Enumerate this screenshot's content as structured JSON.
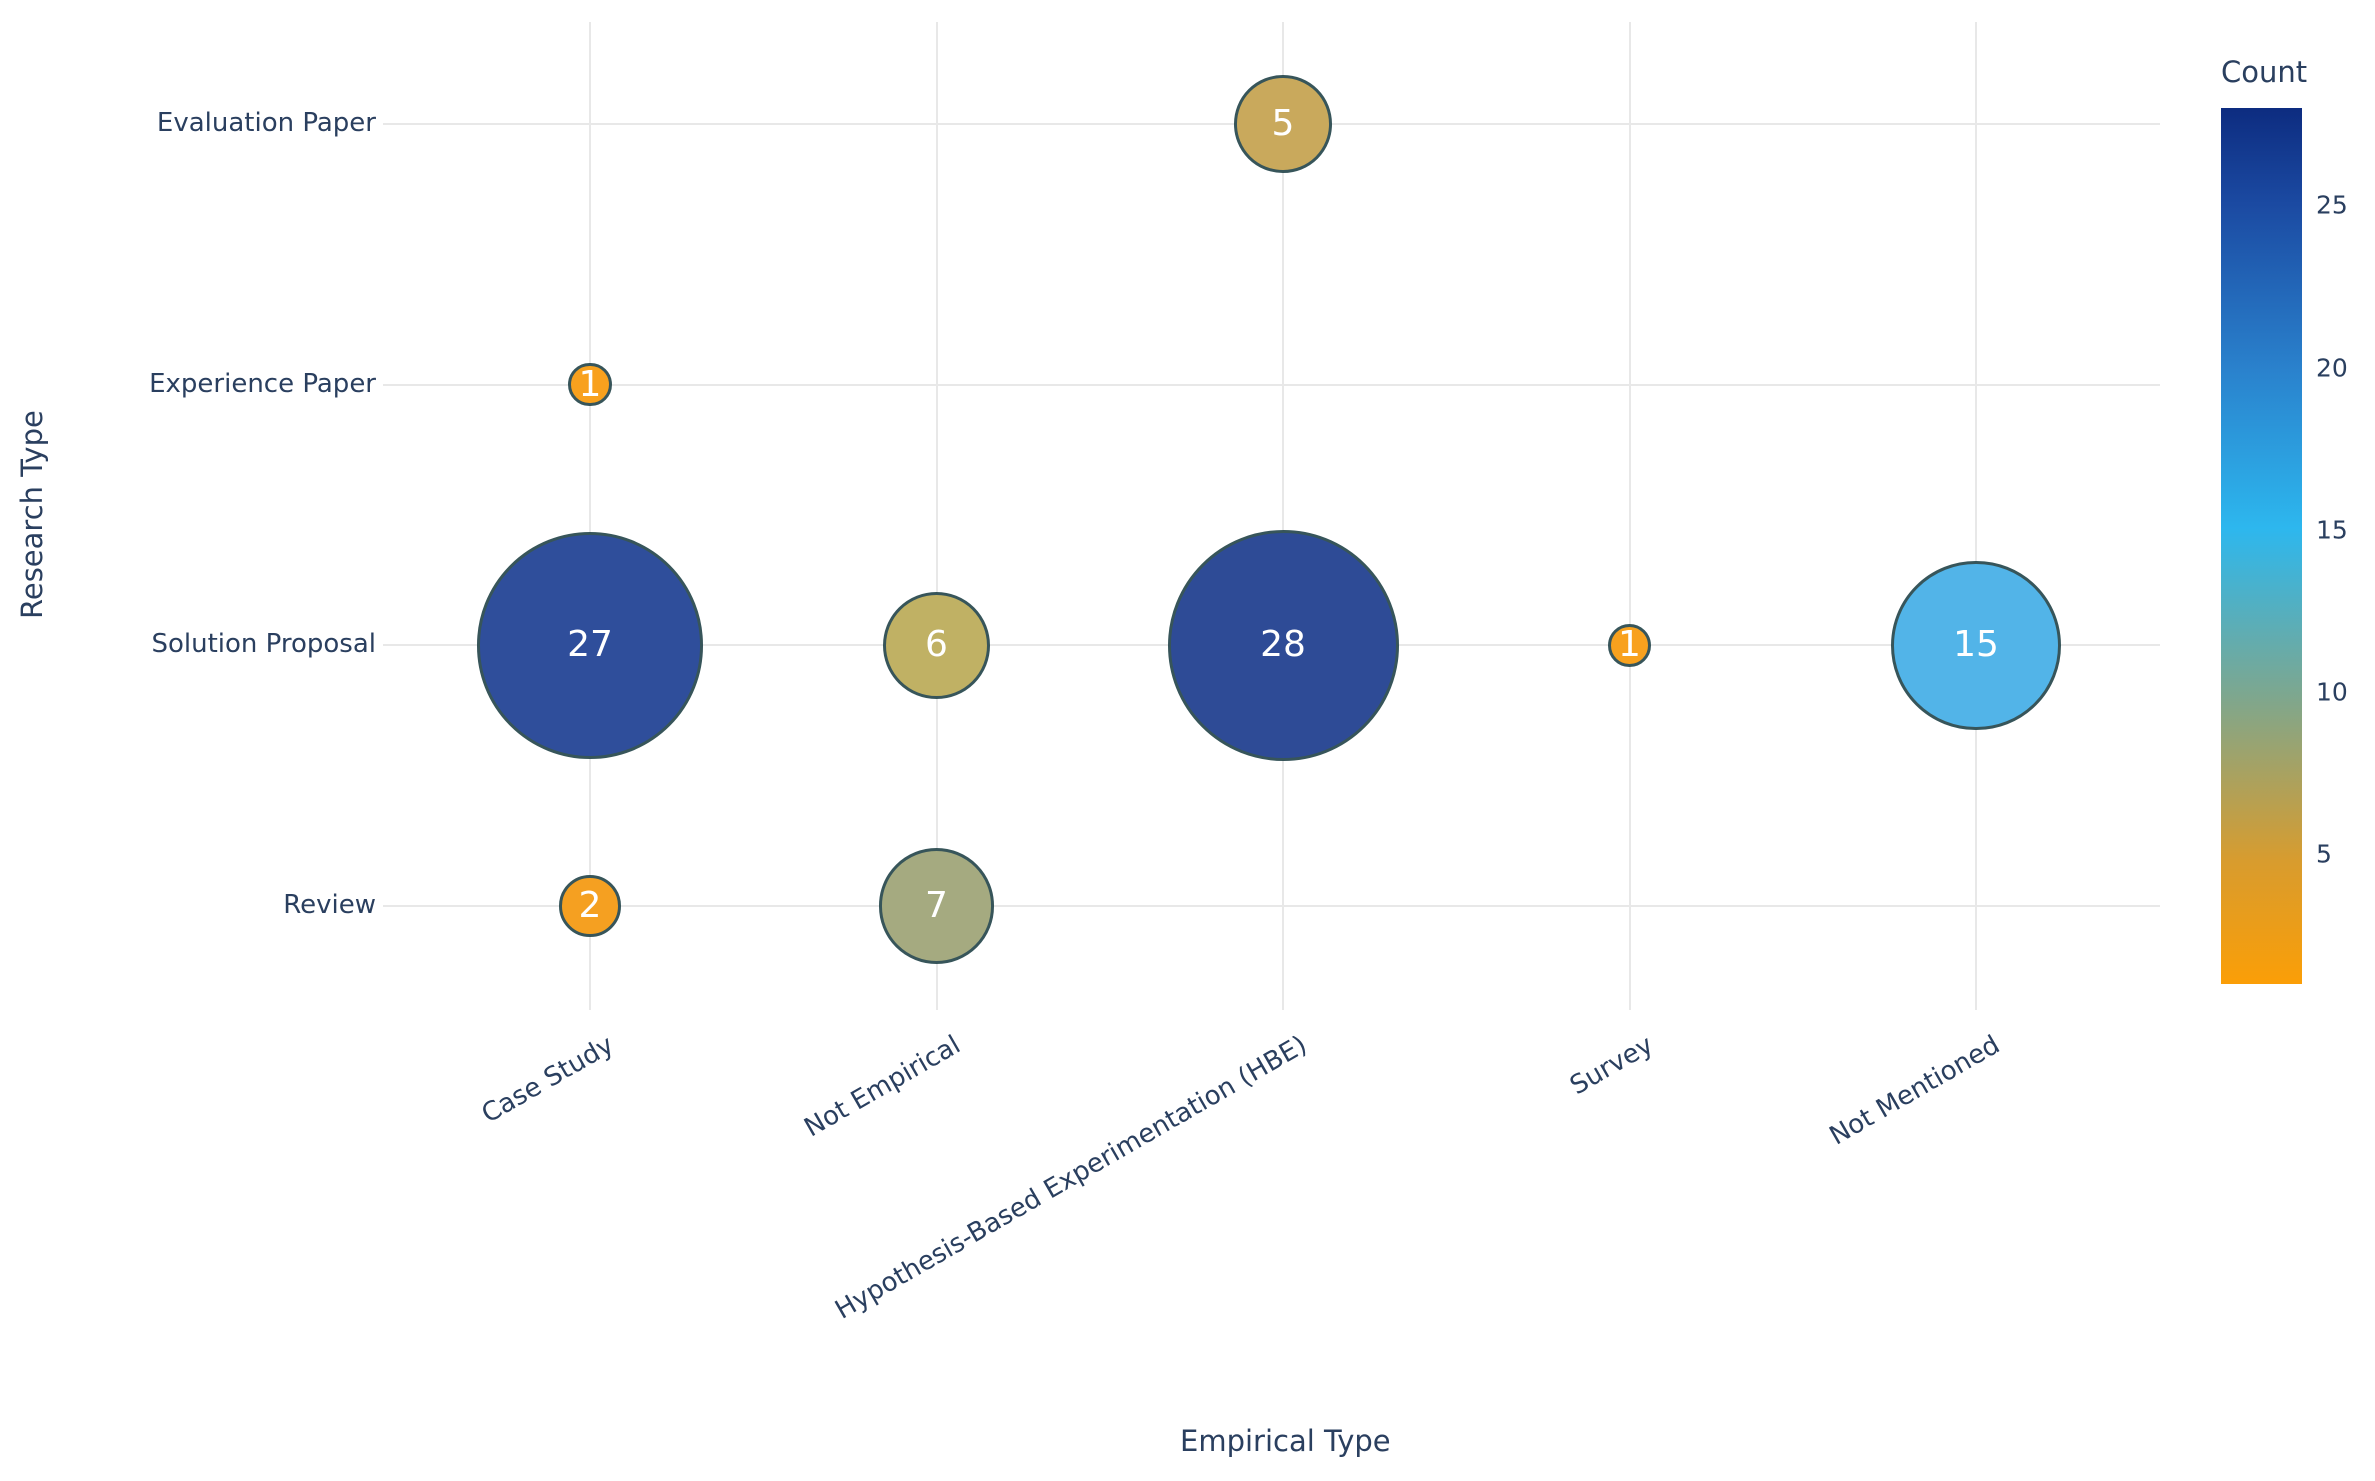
{
  "chart_data": {
    "type": "scatter",
    "subtype": "bubble",
    "title": "",
    "xlabel": "Empirical Type",
    "ylabel": "Research Type",
    "x_categories": [
      "Case Study",
      "Not Empirical",
      "Hypothesis-Based Experimentation (HBE)",
      "Survey",
      "Not Mentioned"
    ],
    "y_categories": [
      "Evaluation Paper",
      "Experience Paper",
      "Solution Proposal",
      "Review"
    ],
    "points": [
      {
        "x": "Hypothesis-Based Experimentation (HBE)",
        "y": "Evaluation Paper",
        "count": 5,
        "color": "#c9a95c"
      },
      {
        "x": "Case Study",
        "y": "Experience Paper",
        "count": 1,
        "color": "#f8a11e"
      },
      {
        "x": "Case Study",
        "y": "Solution Proposal",
        "count": 27,
        "color": "#2f4e9b"
      },
      {
        "x": "Not Empirical",
        "y": "Solution Proposal",
        "count": 6,
        "color": "#c0b164"
      },
      {
        "x": "Hypothesis-Based Experimentation (HBE)",
        "y": "Solution Proposal",
        "count": 28,
        "color": "#2e4b96"
      },
      {
        "x": "Survey",
        "y": "Solution Proposal",
        "count": 1,
        "color": "#f8a11e"
      },
      {
        "x": "Not Mentioned",
        "y": "Solution Proposal",
        "count": 15,
        "color": "#52b4e8"
      },
      {
        "x": "Case Study",
        "y": "Review",
        "count": 2,
        "color": "#f5a021"
      },
      {
        "x": "Not Empirical",
        "y": "Review",
        "count": 7,
        "color": "#a5aa80"
      }
    ],
    "size_min_count": 1,
    "size_max_count": 28,
    "grid": true,
    "legend_position": "right",
    "colorbar": {
      "title": "Count",
      "min": 1,
      "max": 28,
      "ticks": [
        5,
        10,
        15,
        20,
        25
      ],
      "gradient_top_to_bottom": [
        {
          "pos": 0,
          "color": "#0d2c80"
        },
        {
          "pos": 0.11,
          "color": "#1b4aa2"
        },
        {
          "pos": 0.3,
          "color": "#2a82cd"
        },
        {
          "pos": 0.48,
          "color": "#2db7ee"
        },
        {
          "pos": 0.67,
          "color": "#7da78f"
        },
        {
          "pos": 0.86,
          "color": "#d89c2e"
        },
        {
          "pos": 1,
          "color": "#fb9e07"
        }
      ]
    }
  }
}
